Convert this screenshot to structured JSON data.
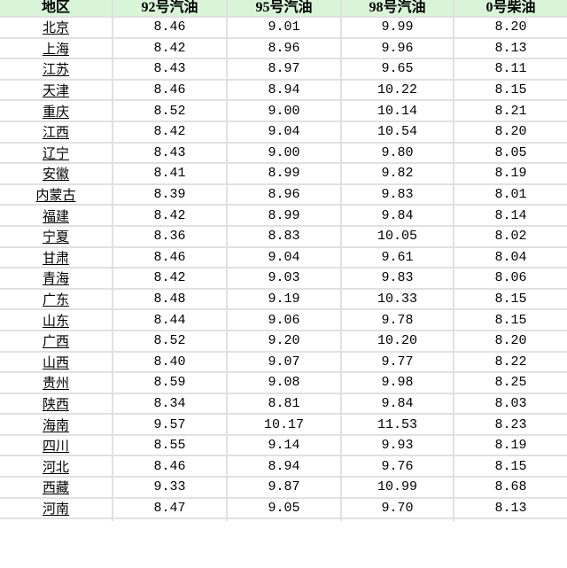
{
  "colors": {
    "header_bg": "#d8f5d8",
    "grid_line": "#e1e1e1",
    "text": "#000000",
    "row_bg": "#ffffff"
  },
  "chart_data": {
    "type": "table",
    "title": "",
    "columns": [
      "地区",
      "92号汽油",
      "95号汽油",
      "98号汽油",
      "0号柴油"
    ],
    "rows": [
      [
        "北京",
        "8.46",
        "9.01",
        "9.99",
        "8.20"
      ],
      [
        "上海",
        "8.42",
        "8.96",
        "9.96",
        "8.13"
      ],
      [
        "江苏",
        "8.43",
        "8.97",
        "9.65",
        "8.11"
      ],
      [
        "天津",
        "8.46",
        "8.94",
        "10.22",
        "8.15"
      ],
      [
        "重庆",
        "8.52",
        "9.00",
        "10.14",
        "8.21"
      ],
      [
        "江西",
        "8.42",
        "9.04",
        "10.54",
        "8.20"
      ],
      [
        "辽宁",
        "8.43",
        "9.00",
        "9.80",
        "8.05"
      ],
      [
        "安徽",
        "8.41",
        "8.99",
        "9.82",
        "8.19"
      ],
      [
        "内蒙古",
        "8.39",
        "8.96",
        "9.83",
        "8.01"
      ],
      [
        "福建",
        "8.42",
        "8.99",
        "9.84",
        "8.14"
      ],
      [
        "宁夏",
        "8.36",
        "8.83",
        "10.05",
        "8.02"
      ],
      [
        "甘肃",
        "8.46",
        "9.04",
        "9.61",
        "8.04"
      ],
      [
        "青海",
        "8.42",
        "9.03",
        "9.83",
        "8.06"
      ],
      [
        "广东",
        "8.48",
        "9.19",
        "10.33",
        "8.15"
      ],
      [
        "山东",
        "8.44",
        "9.06",
        "9.78",
        "8.15"
      ],
      [
        "广西",
        "8.52",
        "9.20",
        "10.20",
        "8.20"
      ],
      [
        "山西",
        "8.40",
        "9.07",
        "9.77",
        "8.22"
      ],
      [
        "贵州",
        "8.59",
        "9.08",
        "9.98",
        "8.25"
      ],
      [
        "陕西",
        "8.34",
        "8.81",
        "9.84",
        "8.03"
      ],
      [
        "海南",
        "9.57",
        "10.17",
        "11.53",
        "8.23"
      ],
      [
        "四川",
        "8.55",
        "9.14",
        "9.93",
        "8.19"
      ],
      [
        "河北",
        "8.46",
        "8.94",
        "9.76",
        "8.15"
      ],
      [
        "西藏",
        "9.33",
        "9.87",
        "10.99",
        "8.68"
      ],
      [
        "河南",
        "8.47",
        "9.05",
        "9.70",
        "8.13"
      ]
    ]
  }
}
